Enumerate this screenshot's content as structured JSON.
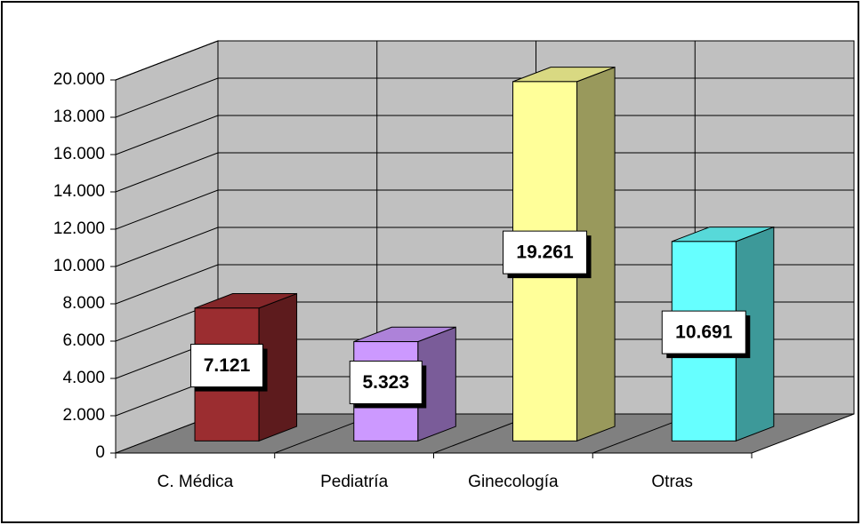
{
  "chart_data": {
    "type": "bar3d",
    "categories": [
      "C. Médica",
      "Pediatría",
      "Ginecología",
      "Otras"
    ],
    "values": [
      7121,
      5323,
      19261,
      10691
    ],
    "value_labels": [
      "7.121",
      "5.323",
      "19.261",
      "10.691"
    ],
    "colors": [
      "#9b2d30",
      "#cc99ff",
      "#ffff99",
      "#66ffff"
    ],
    "ylim": [
      0,
      20000
    ],
    "yticks": [
      0,
      {
        "value": 2000,
        "label": "2.000"
      },
      {
        "value": 4000,
        "label": "4.000"
      },
      {
        "value": 6000,
        "label": "6.000"
      },
      {
        "value": 8000,
        "label": "8.000"
      },
      {
        "value": 10000,
        "label": "10.000"
      },
      {
        "value": 12000,
        "label": "12.000"
      },
      {
        "value": 14000,
        "label": "14.000"
      },
      {
        "value": 16000,
        "label": "16.000"
      },
      {
        "value": 18000,
        "label": "18.000"
      },
      {
        "value": 20000,
        "label": "20.000"
      }
    ],
    "grid": true
  }
}
